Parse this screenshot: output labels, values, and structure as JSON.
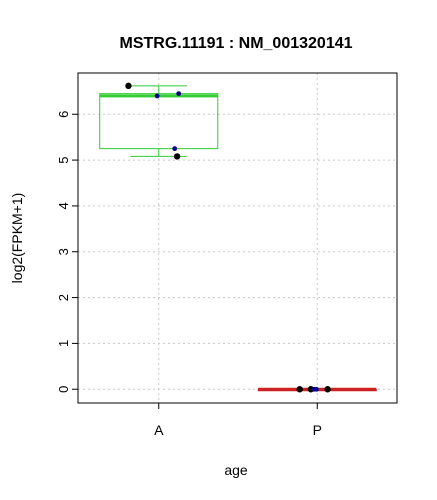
{
  "chart_data": {
    "type": "box",
    "title": "MSTRG.11191  :  NM_001320141",
    "xlabel": "age",
    "ylabel": "log2(FPKM+1)",
    "categories": [
      "A",
      "P"
    ],
    "ylim": [
      -0.3,
      6.9
    ],
    "yticks": [
      0,
      1,
      2,
      3,
      4,
      5,
      6
    ],
    "grid": true,
    "boxes": [
      {
        "category": "A",
        "min": 5.08,
        "q1": 5.25,
        "median": 6.4,
        "q3": 6.45,
        "max": 6.62,
        "color": "#33cc33",
        "points": [
          {
            "y": 6.62,
            "color": "#000000"
          },
          {
            "y": 6.45,
            "color": "#00008b"
          },
          {
            "y": 6.4,
            "color": "#00008b"
          },
          {
            "y": 5.25,
            "color": "#00008b"
          },
          {
            "y": 5.08,
            "color": "#000000"
          }
        ]
      },
      {
        "category": "P",
        "min": 0.0,
        "q1": 0.0,
        "median": 0.0,
        "q3": 0.0,
        "max": 0.0,
        "color": "#cc2222",
        "points": [
          {
            "y": 0.0,
            "color": "#000000"
          },
          {
            "y": 0.0,
            "color": "#000000"
          },
          {
            "y": 0.0,
            "color": "#00008b"
          },
          {
            "y": 0.0,
            "color": "#00008b"
          },
          {
            "y": 0.0,
            "color": "#000000"
          }
        ]
      }
    ]
  }
}
